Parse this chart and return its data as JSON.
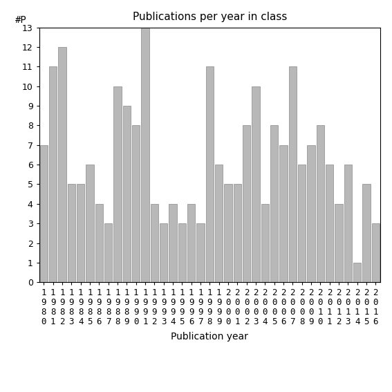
{
  "title": "Publications per year in class",
  "xlabel": "Publication year",
  "ylabel": "#P",
  "categories": [
    "1980",
    "1981",
    "1982",
    "1983",
    "1984",
    "1985",
    "1986",
    "1987",
    "1988",
    "1989",
    "1990",
    "1991",
    "1992",
    "1993",
    "1994",
    "1995",
    "1996",
    "1997",
    "1998",
    "1999",
    "2000",
    "2001",
    "2002",
    "2003",
    "2004",
    "2005",
    "2006",
    "2007",
    "2008",
    "2009",
    "2010",
    "2011",
    "2012",
    "2013",
    "2014",
    "2015",
    "2016"
  ],
  "values": [
    7,
    11,
    12,
    5,
    5,
    6,
    4,
    3,
    10,
    9,
    8,
    13,
    4,
    3,
    4,
    3,
    4,
    3,
    11,
    6,
    5,
    5,
    8,
    10,
    4,
    8,
    7,
    11,
    6,
    7,
    8,
    6,
    4,
    6,
    1,
    5,
    3
  ],
  "bar_color": "#b8b8b8",
  "bar_edgecolor": "#888888",
  "ylim": [
    0,
    13
  ],
  "yticks": [
    0,
    1,
    2,
    3,
    4,
    5,
    6,
    7,
    8,
    9,
    10,
    11,
    12,
    13
  ],
  "title_fontsize": 11,
  "axis_label_fontsize": 10,
  "tick_fontsize": 9,
  "background_color": "#ffffff"
}
